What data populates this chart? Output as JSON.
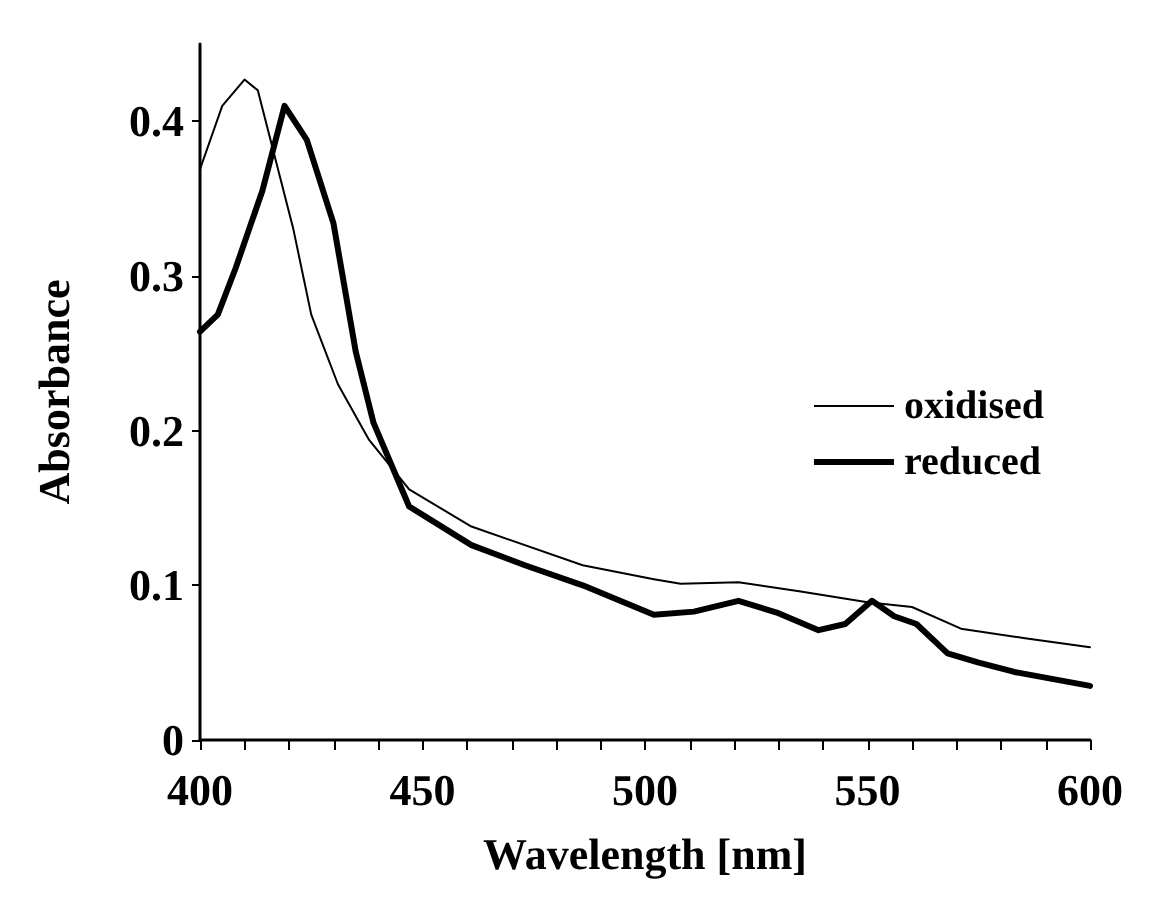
{
  "chart_data": {
    "type": "line",
    "xlabel": "Wavelength [nm]",
    "ylabel": "Absorbance",
    "xlim": [
      400,
      600
    ],
    "ylim": [
      0,
      0.45
    ],
    "xticks": [
      400,
      {
        "value": 410,
        "label": null
      },
      {
        "value": 420,
        "label": null
      },
      {
        "value": 430,
        "label": null
      },
      {
        "value": 440,
        "label": null
      },
      450,
      {
        "value": 460,
        "label": null
      },
      {
        "value": 470,
        "label": null
      },
      {
        "value": 480,
        "label": null
      },
      {
        "value": 490,
        "label": null
      },
      500,
      {
        "value": 510,
        "label": null
      },
      {
        "value": 520,
        "label": null
      },
      {
        "value": 530,
        "label": null
      },
      {
        "value": 540,
        "label": null
      },
      550,
      {
        "value": 560,
        "label": null
      },
      {
        "value": 570,
        "label": null
      },
      {
        "value": 580,
        "label": null
      },
      {
        "value": 590,
        "label": null
      },
      600
    ],
    "yticks": [
      0,
      0.1,
      0.2,
      0.3,
      0.4
    ],
    "grid": false,
    "legend": "right",
    "marker": "none",
    "line_style": "solid",
    "series": [
      {
        "name": "oxidised",
        "color": "#000000",
        "x": [
          400,
          405,
          410,
          413,
          417,
          421,
          425,
          431,
          438,
          447,
          461,
          486,
          502,
          508,
          521,
          535,
          550,
          560,
          571,
          585,
          600
        ],
        "values": [
          0.369,
          0.41,
          0.427,
          0.42,
          0.375,
          0.33,
          0.275,
          0.23,
          0.194,
          0.162,
          0.138,
          0.113,
          0.104,
          0.101,
          0.102,
          0.096,
          0.089,
          0.086,
          0.072,
          0.066,
          0.06
        ]
      },
      {
        "name": "reduced",
        "color": "#000000",
        "x": [
          400,
          404,
          408,
          414,
          419,
          424,
          430,
          435,
          439,
          447,
          461,
          473,
          486,
          502,
          511,
          521,
          530,
          539,
          545,
          551,
          556,
          561,
          568,
          575,
          583,
          600
        ],
        "values": [
          0.264,
          0.275,
          0.305,
          0.355,
          0.41,
          0.388,
          0.334,
          0.251,
          0.205,
          0.151,
          0.126,
          0.113,
          0.1,
          0.081,
          0.083,
          0.09,
          0.082,
          0.071,
          0.075,
          0.09,
          0.08,
          0.075,
          0.056,
          0.05,
          0.044,
          0.035
        ]
      }
    ]
  }
}
